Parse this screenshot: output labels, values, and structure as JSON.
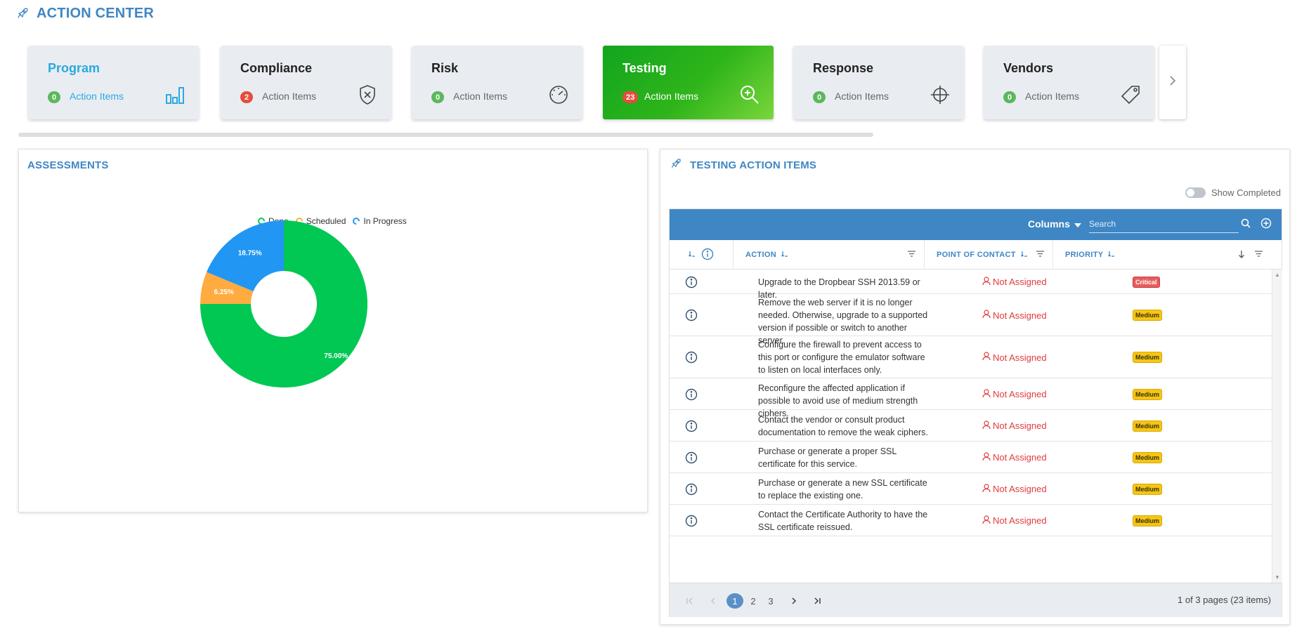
{
  "header": {
    "title": "ACTION CENTER",
    "icon": "rocket-icon"
  },
  "cards": [
    {
      "title": "Program",
      "count": "0",
      "sub": "Action Items",
      "icon": "bar-chart-icon",
      "badge_color": "#5cb85c"
    },
    {
      "title": "Compliance",
      "count": "2",
      "sub": "Action Items",
      "icon": "shield-x-icon",
      "badge_color": "#e74c3c"
    },
    {
      "title": "Risk",
      "count": "0",
      "sub": "Action Items",
      "icon": "gauge-icon",
      "badge_color": "#5cb85c"
    },
    {
      "title": "Testing",
      "count": "23",
      "sub": "Action Items",
      "icon": "zoom-in-icon",
      "badge_color": "#e74c3c",
      "active": true
    },
    {
      "title": "Response",
      "count": "0",
      "sub": "Action Items",
      "icon": "crosshair-icon",
      "badge_color": "#5cb85c"
    },
    {
      "title": "Vendors",
      "count": "0",
      "sub": "Action Items",
      "icon": "tag-icon",
      "badge_color": "#5cb85c"
    }
  ],
  "assessments": {
    "title": "ASSESSMENTS",
    "legend": [
      {
        "label": "Done",
        "color": "#00c853"
      },
      {
        "label": "Scheduled",
        "color": "#ffab40"
      },
      {
        "label": "In Progress",
        "color": "#2196f3"
      }
    ]
  },
  "chart_data": {
    "type": "pie",
    "categories": [
      "Done",
      "Scheduled",
      "In Progress"
    ],
    "values": [
      75.0,
      6.25,
      18.75
    ],
    "labels": [
      "75.00%",
      "6.25%",
      "18.75%"
    ],
    "colors": [
      "#00c853",
      "#ffab40",
      "#2196f3"
    ],
    "title": "",
    "legend_position": "top",
    "donut": true
  },
  "testing": {
    "title": "TESTING ACTION ITEMS",
    "show_completed_label": "Show Completed",
    "columns_label": "Columns",
    "search_placeholder": "Search",
    "headers": {
      "action": "ACTION",
      "poc": "POINT OF CONTACT",
      "priority": "PRIORITY"
    },
    "rows": [
      {
        "action": "Upgrade to the Dropbear SSH 2013.59 or later.",
        "poc": "Not Assigned",
        "priority": "Critical"
      },
      {
        "action": "Remove the web server if it is no longer needed. Otherwise, upgrade to a supported version if possible or switch to another server.",
        "poc": "Not Assigned",
        "priority": "Medium"
      },
      {
        "action": "Configure the firewall to prevent access to this port or configure the emulator software to listen on local interfaces only.",
        "poc": "Not Assigned",
        "priority": "Medium"
      },
      {
        "action": "Reconfigure the affected application if possible to avoid use of medium strength ciphers.",
        "poc": "Not Assigned",
        "priority": "Medium"
      },
      {
        "action": "Contact the vendor or consult product documentation to remove the weak ciphers.",
        "poc": "Not Assigned",
        "priority": "Medium"
      },
      {
        "action": "Purchase or generate a proper SSL certificate for this service.",
        "poc": "Not Assigned",
        "priority": "Medium"
      },
      {
        "action": "Purchase or generate a new SSL certificate to replace the existing one.",
        "poc": "Not Assigned",
        "priority": "Medium"
      },
      {
        "action": "Contact the Certificate Authority to have the SSL certificate reissued.",
        "poc": "Not Assigned",
        "priority": "Medium"
      }
    ],
    "pager": {
      "pages": [
        "1",
        "2",
        "3"
      ],
      "current": "1",
      "info": "1 of 3 pages (23 items)"
    }
  }
}
